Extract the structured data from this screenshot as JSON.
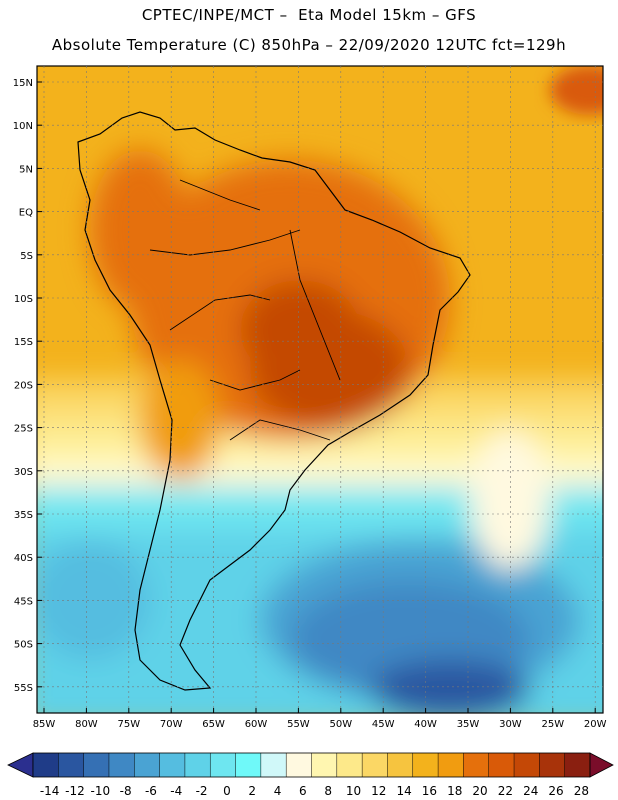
{
  "header": {
    "line1": "CPTEC/INPE/MCT –  Eta Model 15km – GFS",
    "line2": "Absolute Temperature (C) 850hPa – 22/09/2020 12UTC fct=129h"
  },
  "map": {
    "lat_labels": [
      "15N",
      "10N",
      "5N",
      "EQ",
      "5S",
      "10S",
      "15S",
      "20S",
      "25S",
      "30S",
      "35S",
      "40S",
      "45S",
      "50S",
      "55S"
    ],
    "lon_labels": [
      "85W",
      "80W",
      "75W",
      "70W",
      "65W",
      "60W",
      "55W",
      "50W",
      "45W",
      "40W",
      "35W",
      "30W",
      "25W",
      "20W"
    ]
  },
  "colorbar": {
    "labels": [
      "-14",
      "-12",
      "-10",
      "-8",
      "-6",
      "-4",
      "-2",
      "0",
      "2",
      "4",
      "6",
      "8",
      "10",
      "12",
      "14",
      "16",
      "18",
      "20",
      "22",
      "24",
      "26",
      "28"
    ],
    "colors": [
      "#1f3c88",
      "#2a56a0",
      "#3570b4",
      "#3f88c4",
      "#4aa3d3",
      "#55bde0",
      "#5fd2e8",
      "#6ee6f0",
      "#6ff9f9",
      "#d0f8f9",
      "#fff9e0",
      "#fff6b0",
      "#fde98a",
      "#fbd765",
      "#f6c43f",
      "#f3b21c",
      "#f19c10",
      "#e5700c",
      "#d95a08",
      "#c44806",
      "#a8330a",
      "#8a1f10"
    ],
    "low_color": "#2b2f8f",
    "high_color": "#7a0d2a"
  }
}
